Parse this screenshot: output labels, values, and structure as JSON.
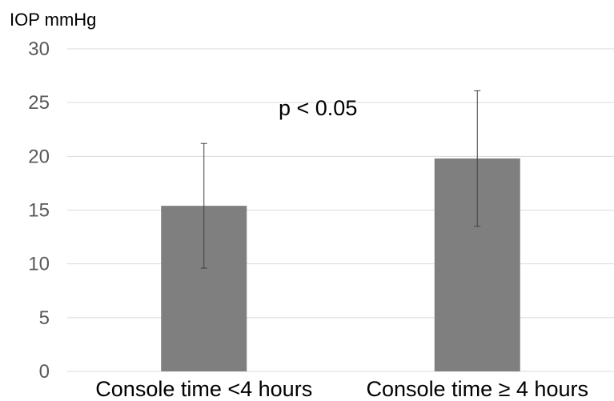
{
  "chart_data": {
    "type": "bar",
    "ylabel": "IOP mmHg",
    "xlabel": "",
    "categories": [
      "Console time <4 hours",
      "Console time ≥ 4 hours"
    ],
    "values": [
      15.4,
      19.8
    ],
    "error": [
      5.8,
      6.3
    ],
    "ylim": [
      0,
      30
    ],
    "yticks": [
      0,
      5,
      10,
      15,
      20,
      25,
      30
    ],
    "ytick_labels": [
      "0",
      "5",
      "10",
      "15",
      "20",
      "25",
      "30"
    ],
    "annotation": "p < 0.05",
    "grid": true,
    "legend": "none",
    "colors": {
      "bar": "#7f7f7f",
      "grid": "#d9d9d9",
      "errorbar": "#404040",
      "tick_text": "#595959"
    }
  }
}
